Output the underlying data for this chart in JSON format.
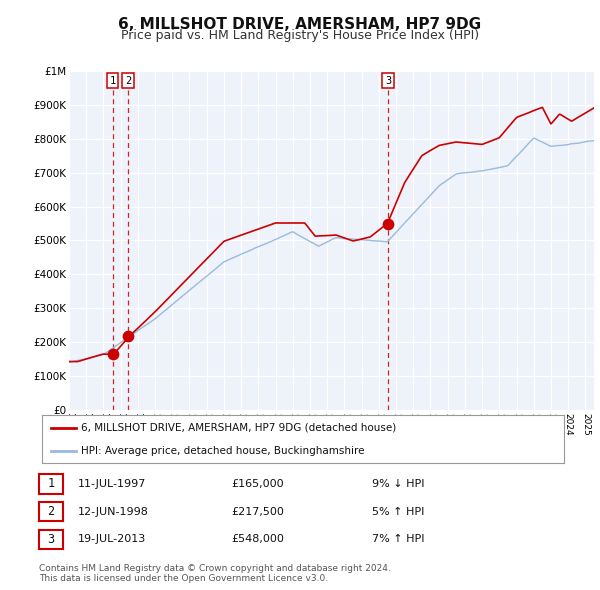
{
  "title": "6, MILLSHOT DRIVE, AMERSHAM, HP7 9DG",
  "subtitle": "Price paid vs. HM Land Registry's House Price Index (HPI)",
  "title_fontsize": 11,
  "subtitle_fontsize": 9,
  "background_color": "#ffffff",
  "plot_bg_color": "#eef2fa",
  "grid_color": "#ffffff",
  "red_line_color": "#cc0000",
  "blue_line_color": "#99bbdd",
  "ylim": [
    0,
    1000000
  ],
  "yticks": [
    0,
    100000,
    200000,
    300000,
    400000,
    500000,
    600000,
    700000,
    800000,
    900000,
    1000000
  ],
  "ytick_labels": [
    "£0",
    "£100K",
    "£200K",
    "£300K",
    "£400K",
    "£500K",
    "£600K",
    "£700K",
    "£800K",
    "£900K",
    "£1M"
  ],
  "sale_dates": [
    1997.53,
    1998.44,
    2013.54
  ],
  "sale_prices": [
    165000,
    217500,
    548000
  ],
  "sale_labels": [
    "1",
    "2",
    "3"
  ],
  "legend_entries": [
    "6, MILLSHOT DRIVE, AMERSHAM, HP7 9DG (detached house)",
    "HPI: Average price, detached house, Buckinghamshire"
  ],
  "table_rows": [
    {
      "num": "1",
      "date": "11-JUL-1997",
      "price": "£165,000",
      "pct": "9% ↓ HPI"
    },
    {
      "num": "2",
      "date": "12-JUN-1998",
      "price": "£217,500",
      "pct": "5% ↑ HPI"
    },
    {
      "num": "3",
      "date": "19-JUL-2013",
      "price": "£548,000",
      "pct": "7% ↑ HPI"
    }
  ],
  "footnote": "Contains HM Land Registry data © Crown copyright and database right 2024.\nThis data is licensed under the Open Government Licence v3.0.",
  "xmin": 1995.0,
  "xmax": 2025.5
}
